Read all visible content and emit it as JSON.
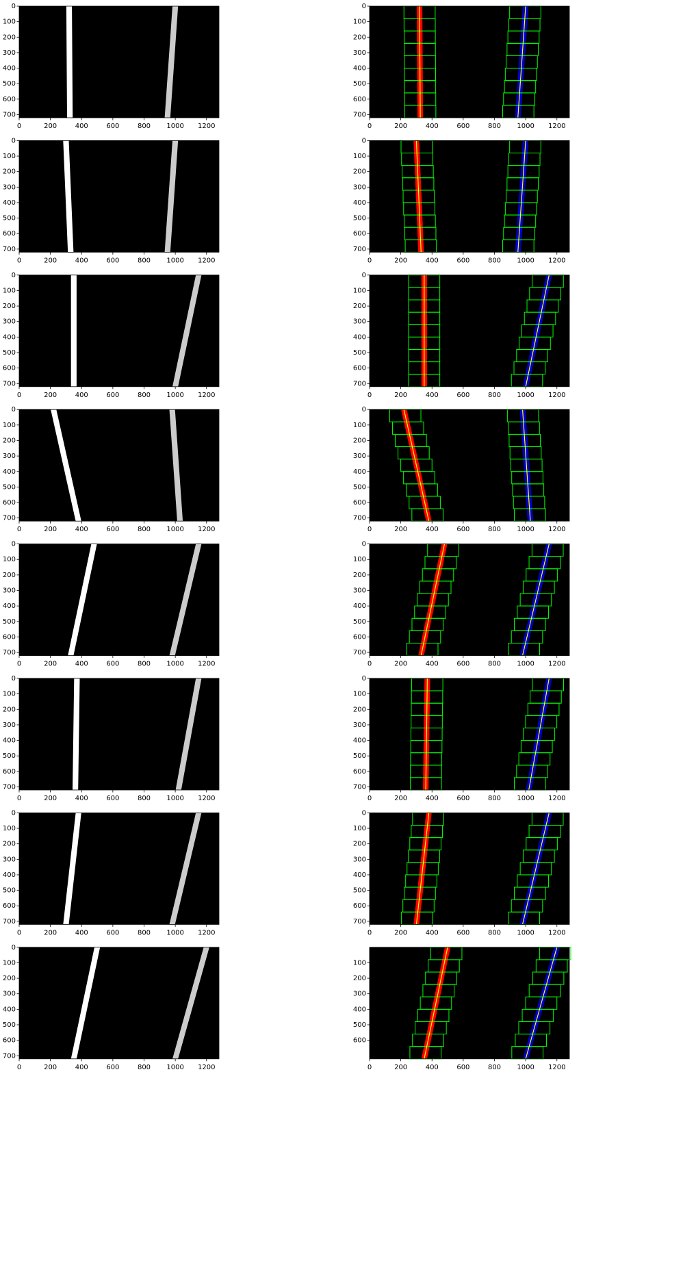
{
  "figure": {
    "xlim": [
      0,
      1280
    ],
    "ylim": [
      720,
      0
    ],
    "xticks": [
      0,
      200,
      400,
      600,
      800,
      1000,
      1200
    ],
    "yticks": [
      0,
      100,
      200,
      300,
      400,
      500,
      600,
      700
    ],
    "last_right_yticks": [
      100,
      200,
      300,
      400,
      500,
      600
    ]
  }
}
